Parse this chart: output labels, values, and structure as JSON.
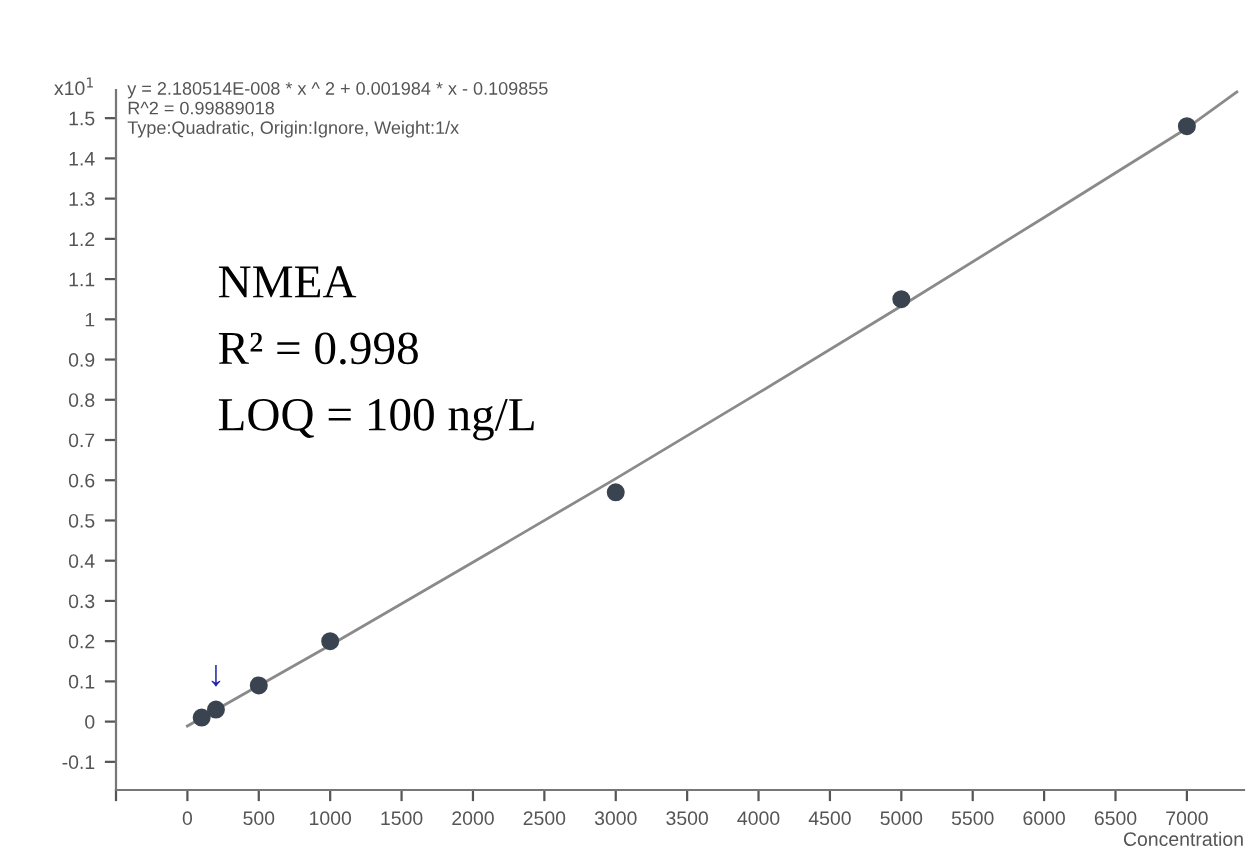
{
  "chart_data": {
    "type": "scatter",
    "xlabel": "Concentration",
    "ylabel": "x10$^{1}$",
    "series": [
      {
        "color": "#3a4450",
        "x": [
          100,
          200,
          500,
          1000,
          3000,
          5000,
          7000
        ],
        "values": [
          0.01,
          0.03,
          0.09,
          0.2,
          0.57,
          1.05,
          1.48
        ],
        "marker": "circle"
      },
      {
        "type": "line",
        "color": "#8a8a8a",
        "x": [
          0,
          1000,
          2000,
          3000,
          4000,
          5000,
          6000,
          7000,
          7350
        ],
        "values": [
          -0.011,
          0.19,
          0.396,
          0.604,
          0.817,
          1.033,
          1.253,
          1.475,
          1.565
        ],
        "marker": "none"
      }
    ],
    "xlim": [
      -500,
      7400
    ],
    "ylim": [
      -0.17,
      1.57
    ],
    "xticks": [
      {
        "value": -500,
        "label": null
      },
      0,
      500,
      1000,
      1500,
      2000,
      2500,
      3000,
      3500,
      4000,
      4500,
      5000,
      5500,
      6000,
      6500,
      7000
    ],
    "yticks": [
      -0.1,
      0,
      0.1,
      0.2,
      0.3,
      0.4,
      0.5,
      0.6,
      0.7,
      0.8,
      0.9,
      1,
      1.1,
      1.2,
      1.3,
      1.4,
      1.5
    ],
    "grid": false,
    "legend": false,
    "annotations": [
      "y = 2.180514E-008 * x ^ 2 + 0.001984 * x - 0.109855",
      "R^2 = 0.99889018",
      "Type:Quadratic, Origin:Ignore, Weight:1/x",
      "NMEA",
      "R² = 0.998",
      "LOQ = 100 ng/L",
      {
        "text": "↓",
        "x": 200,
        "y": 0.03
      }
    ]
  }
}
